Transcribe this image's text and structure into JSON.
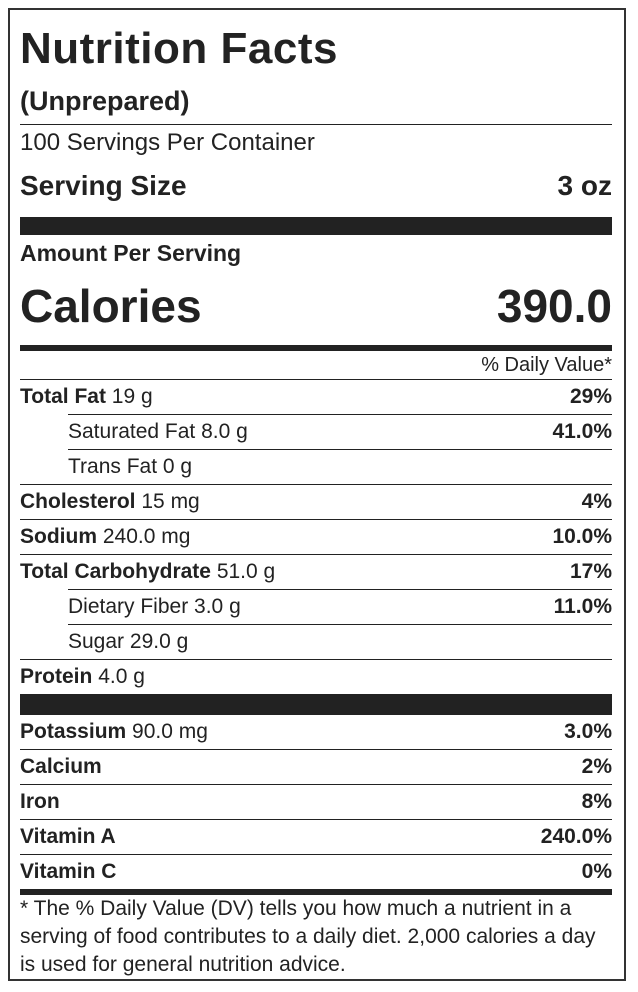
{
  "title": "Nutrition Facts",
  "subtitle": "(Unprepared)",
  "servings_per_container": "100 Servings Per Container",
  "serving_size": {
    "label": "Serving Size",
    "value": "3 oz"
  },
  "amount_per_serving": "Amount Per Serving",
  "calories": {
    "label": "Calories",
    "value": "390.0"
  },
  "daily_value_header": "% Daily Value*",
  "nutrients": [
    {
      "name": "Total Fat",
      "amount": "19 g",
      "dv": "29%"
    },
    {
      "name": "Saturated Fat",
      "amount": "8.0 g",
      "dv": "41.0%",
      "indent": true
    },
    {
      "name": "Trans Fat",
      "amount": "0 g",
      "indent": true
    },
    {
      "name": "Cholesterol",
      "amount": "15 mg",
      "dv": "4%"
    },
    {
      "name": "Sodium",
      "amount": "240.0 mg",
      "dv": "10.0%"
    },
    {
      "name": "Total Carbohydrate",
      "amount": "51.0 g",
      "dv": "17%"
    },
    {
      "name": "Dietary Fiber",
      "amount": "3.0 g",
      "dv": "11.0%",
      "indent": true
    },
    {
      "name": "Sugar",
      "amount": "29.0 g",
      "indent": true
    },
    {
      "name": "Protein",
      "amount": "4.0 g"
    }
  ],
  "minerals": [
    {
      "name": "Potassium",
      "amount": "90.0 mg",
      "dv": "3.0%"
    },
    {
      "name": "Calcium",
      "dv": "2%"
    },
    {
      "name": "Iron",
      "dv": "8%"
    },
    {
      "name": "Vitamin A",
      "dv": "240.0%"
    },
    {
      "name": "Vitamin C",
      "dv": "0%"
    }
  ],
  "footnote": "* The % Daily Value (DV) tells you how much a nutrient in a serving of food contributes to a daily diet. 2,000 calories a day is used for general nutrition advice."
}
